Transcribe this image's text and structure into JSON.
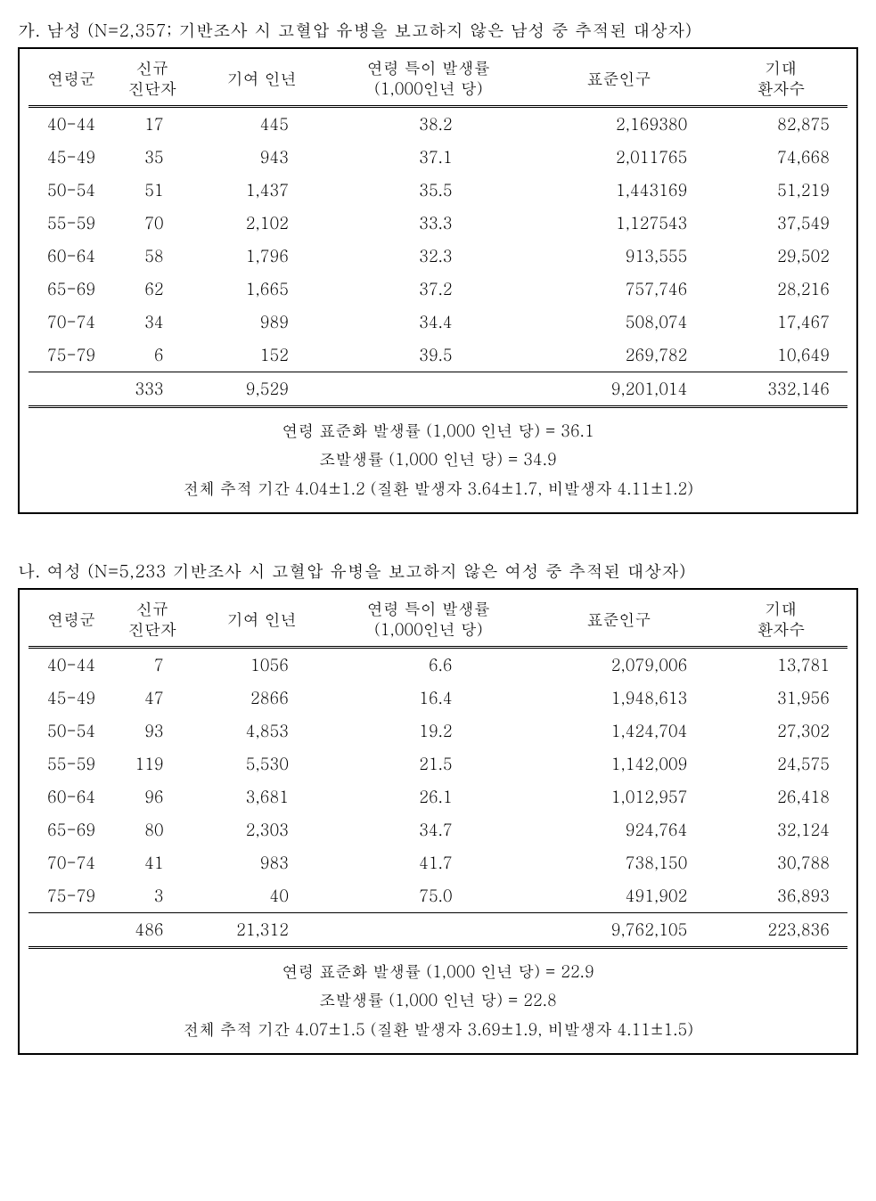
{
  "tables": [
    {
      "caption": "가. 남성 (N=2,357; 기반조사 시 고혈압 유병을 보고하지 않은 남성 중 추적된 대상자)",
      "headers": {
        "age": "연령군",
        "new": "신규\n진단자",
        "py": "기여 인년",
        "rate": "연령 특이 발생률\n(1,000인년 당)",
        "pop": "표준인구",
        "exp": "기대\n환자수"
      },
      "rows": [
        {
          "age": "40-44",
          "new": "17",
          "py": "445",
          "rate": "38.2",
          "pop": "2,169380",
          "exp": "82,875"
        },
        {
          "age": "45-49",
          "new": "35",
          "py": "943",
          "rate": "37.1",
          "pop": "2,011765",
          "exp": "74,668"
        },
        {
          "age": "50-54",
          "new": "51",
          "py": "1,437",
          "rate": "35.5",
          "pop": "1,443169",
          "exp": "51,219"
        },
        {
          "age": "55-59",
          "new": "70",
          "py": "2,102",
          "rate": "33.3",
          "pop": "1,127543",
          "exp": "37,549"
        },
        {
          "age": "60-64",
          "new": "58",
          "py": "1,796",
          "rate": "32.3",
          "pop": "913,555",
          "exp": "29,502"
        },
        {
          "age": "65-69",
          "new": "62",
          "py": "1,665",
          "rate": "37.2",
          "pop": "757,746",
          "exp": "28,216"
        },
        {
          "age": "70-74",
          "new": "34",
          "py": "989",
          "rate": "34.4",
          "pop": "508,074",
          "exp": "17,467"
        },
        {
          "age": "75-79",
          "new": "6",
          "py": "152",
          "rate": "39.5",
          "pop": "269,782",
          "exp": "10,649"
        }
      ],
      "totals": {
        "new": "333",
        "py": "9,529",
        "pop": "9,201,014",
        "exp": "332,146"
      },
      "footer": {
        "line1": "연령 표준화 발생률 (1,000 인년 당) =  36.1",
        "line2": "조발생률 (1,000 인년 당) = 34.9",
        "line3": "전체 추적 기간 4.04±1.2 (질환 발생자 3.64±1.7, 비발생자 4.11±1.2)"
      }
    },
    {
      "caption": "나. 여성 (N=5,233 기반조사 시 고혈압 유병을 보고하지 않은 여성 중 추적된 대상자)",
      "headers": {
        "age": "연령군",
        "new": "신규\n진단자",
        "py": "기여 인년",
        "rate": "연령 특이 발생률\n(1,000인년 당)",
        "pop": "표준인구",
        "exp": "기대\n환자수"
      },
      "rows": [
        {
          "age": "40-44",
          "new": "7",
          "py": "1056",
          "rate": "6.6",
          "pop": "2,079,006",
          "exp": "13,781"
        },
        {
          "age": "45-49",
          "new": "47",
          "py": "2866",
          "rate": "16.4",
          "pop": "1,948,613",
          "exp": "31,956"
        },
        {
          "age": "50-54",
          "new": "93",
          "py": "4,853",
          "rate": "19.2",
          "pop": "1,424,704",
          "exp": "27,302"
        },
        {
          "age": "55-59",
          "new": "119",
          "py": "5,530",
          "rate": "21.5",
          "pop": "1,142,009",
          "exp": "24,575"
        },
        {
          "age": "60-64",
          "new": "96",
          "py": "3,681",
          "rate": "26.1",
          "pop": "1,012,957",
          "exp": "26,418"
        },
        {
          "age": "65-69",
          "new": "80",
          "py": "2,303",
          "rate": "34.7",
          "pop": "924,764",
          "exp": "32,124"
        },
        {
          "age": "70-74",
          "new": "41",
          "py": "983",
          "rate": "41.7",
          "pop": "738,150",
          "exp": "30,788"
        },
        {
          "age": "75-79",
          "new": "3",
          "py": "40",
          "rate": "75.0",
          "pop": "491,902",
          "exp": "36,893"
        }
      ],
      "totals": {
        "new": "486",
        "py": "21,312",
        "pop": "9,762,105",
        "exp": "223,836"
      },
      "footer": {
        "line1": "연령 표준화 발생률 (1,000 인년 당) =  22.9",
        "line2": "조발생률 (1,000 인년 당) = 22.8",
        "line3": "전체 추적 기간 4.07±1.5 (질환 발생자 3.69±1.9, 비발생자 4.11±1.5)"
      }
    }
  ]
}
